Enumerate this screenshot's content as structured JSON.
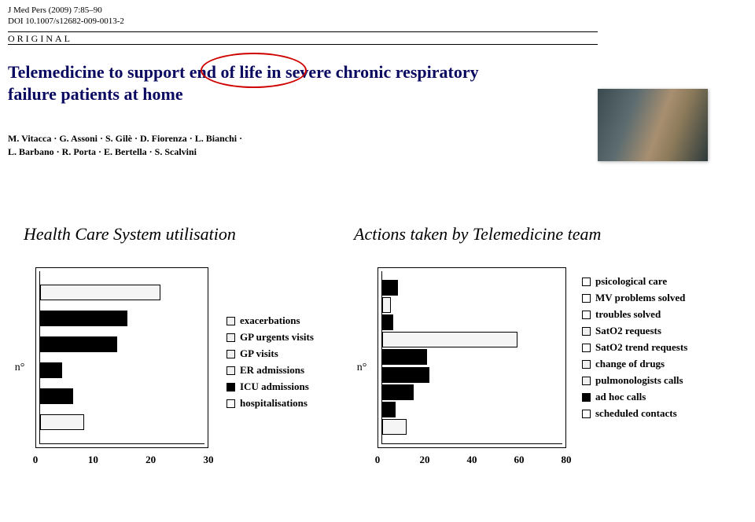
{
  "journal": {
    "line1": "J Med Pers (2009) 7:85–90",
    "line2": "DOI 10.1007/s12682-009-0013-2"
  },
  "original_label": "ORIGINAL",
  "title_line1": "Telemedicine to support end of life in severe chronic respiratory",
  "title_line2": "failure patients at home",
  "authors_line1": "M. Vitacca · G. Assoni · S. Gilè · D. Fiorenza · L. Bianchi ·",
  "authors_line2": "L. Barbano · R. Porta · E. Bertella · S. Scalvini",
  "chart1": {
    "title": "Health Care System utilisation",
    "ylabel": "n°",
    "xmax": 30,
    "xticks": [
      0,
      10,
      20,
      30
    ],
    "bars": [
      {
        "value": 22,
        "fill": "light"
      },
      {
        "value": 16,
        "fill": "black"
      },
      {
        "value": 14,
        "fill": "black"
      },
      {
        "value": 4,
        "fill": "black"
      },
      {
        "value": 6,
        "fill": "black"
      },
      {
        "value": 8,
        "fill": "light"
      }
    ],
    "legend": [
      {
        "label": "exacerbations",
        "sw": "light"
      },
      {
        "label": "GP urgents visits",
        "sw": "light"
      },
      {
        "label": "GP visits",
        "sw": "light"
      },
      {
        "label": "ER admissions",
        "sw": "light"
      },
      {
        "label": "ICU admissions",
        "sw": "black"
      },
      {
        "label": "hospitalisations",
        "sw": "white"
      }
    ]
  },
  "chart2": {
    "title": "Actions taken by Telemedicine team",
    "ylabel": "n°",
    "xmax": 80,
    "xticks": [
      0,
      20,
      40,
      60,
      80
    ],
    "bars": [
      {
        "value": 7,
        "fill": "black"
      },
      {
        "value": 4,
        "fill": "light"
      },
      {
        "value": 5,
        "fill": "black"
      },
      {
        "value": 60,
        "fill": "light"
      },
      {
        "value": 20,
        "fill": "black"
      },
      {
        "value": 21,
        "fill": "black"
      },
      {
        "value": 14,
        "fill": "black"
      },
      {
        "value": 6,
        "fill": "black"
      },
      {
        "value": 11,
        "fill": "light"
      }
    ],
    "legend": [
      {
        "label": "psicological care",
        "sw": "white"
      },
      {
        "label": "MV problems solved",
        "sw": "white"
      },
      {
        "label": "troubles solved",
        "sw": "white"
      },
      {
        "label": "SatO2 requests",
        "sw": "light"
      },
      {
        "label": "SatO2 trend requests",
        "sw": "white"
      },
      {
        "label": "change of drugs",
        "sw": "light"
      },
      {
        "label": "pulmonologists calls",
        "sw": "light"
      },
      {
        "label": "ad hoc calls",
        "sw": "black"
      },
      {
        "label": "scheduled contacts",
        "sw": "white"
      }
    ]
  }
}
